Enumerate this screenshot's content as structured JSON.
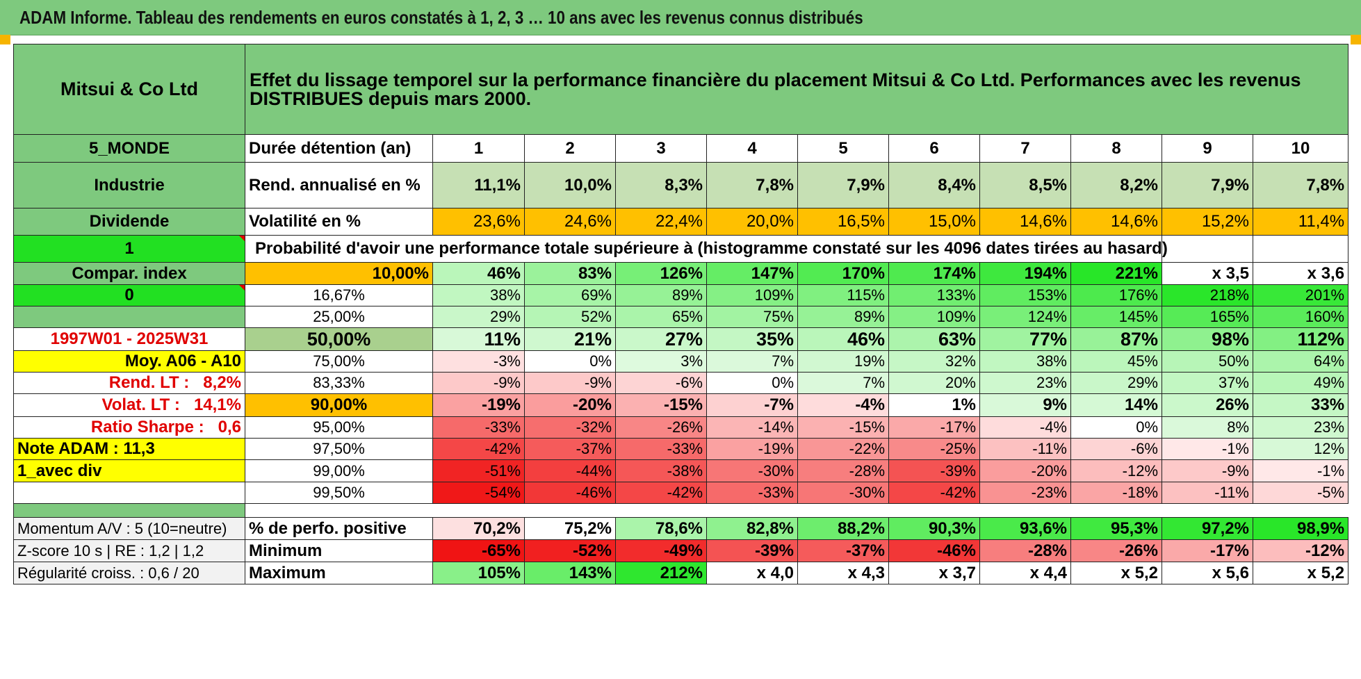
{
  "title": "ADAM Informe. Tableau des rendements en euros constatés à 1, 2, 3 … 10 ans avec les revenus connus distribués",
  "header": {
    "fund_name": "Mitsui & Co Ltd",
    "description": "Effet du lissage temporel sur la performance financière du placement Mitsui & Co Ltd. Performances avec les revenus DISTRIBUES depuis mars 2000."
  },
  "left": {
    "zone": "5_MONDE",
    "sector": "Industrie",
    "dividend": "Dividende",
    "flag1": "1",
    "compar": "Compar. index",
    "flag0": "0",
    "period": "1997W01 - 2025W31",
    "moy": "Moy. A06 - A10",
    "rend_lt_label": "Rend. LT :",
    "rend_lt_value": "8,2%",
    "volat_lt_label": "Volat. LT :",
    "volat_lt_value": "14,1%",
    "sharpe_label": "Ratio Sharpe :",
    "sharpe_value": "0,6",
    "note": "Note ADAM : 11,3",
    "div_mode": "1_avec div"
  },
  "years_label": "Durée détention (an)",
  "years": [
    "1",
    "2",
    "3",
    "4",
    "5",
    "6",
    "7",
    "8",
    "9",
    "10"
  ],
  "rend_label": "Rend. annualisé en %",
  "rend": [
    "11,1%",
    "10,0%",
    "8,3%",
    "7,8%",
    "7,9%",
    "8,4%",
    "8,5%",
    "8,2%",
    "7,9%",
    "7,8%"
  ],
  "vol_label": "Volatilité en %",
  "vol": [
    "23,6%",
    "24,6%",
    "22,4%",
    "20,0%",
    "16,5%",
    "15,0%",
    "14,6%",
    "14,6%",
    "15,2%",
    "11,4%"
  ],
  "prob_label": "Probabilité d'avoir une performance totale supérieure à (histogramme constaté sur les 4096 dates tirées au hasard)",
  "prob_rows": [
    {
      "p": "10,00%",
      "v": [
        "46%",
        "83%",
        "126%",
        "147%",
        "170%",
        "174%",
        "194%",
        "221%",
        "x 3,5",
        "x 3,6"
      ]
    },
    {
      "p": "16,67%",
      "v": [
        "38%",
        "69%",
        "89%",
        "109%",
        "115%",
        "133%",
        "153%",
        "176%",
        "218%",
        "201%"
      ]
    },
    {
      "p": "25,00%",
      "v": [
        "29%",
        "52%",
        "65%",
        "75%",
        "89%",
        "109%",
        "124%",
        "145%",
        "165%",
        "160%"
      ]
    },
    {
      "p": "50,00%",
      "v": [
        "11%",
        "21%",
        "27%",
        "35%",
        "46%",
        "63%",
        "77%",
        "87%",
        "98%",
        "112%"
      ]
    },
    {
      "p": "75,00%",
      "v": [
        "-3%",
        "0%",
        "3%",
        "7%",
        "19%",
        "32%",
        "38%",
        "45%",
        "50%",
        "64%"
      ]
    },
    {
      "p": "83,33%",
      "v": [
        "-9%",
        "-9%",
        "-6%",
        "0%",
        "7%",
        "20%",
        "23%",
        "29%",
        "37%",
        "49%"
      ]
    },
    {
      "p": "90,00%",
      "v": [
        "-19%",
        "-20%",
        "-15%",
        "-7%",
        "-4%",
        "1%",
        "9%",
        "14%",
        "26%",
        "33%"
      ]
    },
    {
      "p": "95,00%",
      "v": [
        "-33%",
        "-32%",
        "-26%",
        "-14%",
        "-15%",
        "-17%",
        "-4%",
        "0%",
        "8%",
        "23%"
      ]
    },
    {
      "p": "97,50%",
      "v": [
        "-42%",
        "-37%",
        "-33%",
        "-19%",
        "-22%",
        "-25%",
        "-11%",
        "-6%",
        "-1%",
        "12%"
      ]
    },
    {
      "p": "99,00%",
      "v": [
        "-51%",
        "-44%",
        "-38%",
        "-30%",
        "-28%",
        "-39%",
        "-20%",
        "-12%",
        "-9%",
        "-1%"
      ]
    },
    {
      "p": "99,50%",
      "v": [
        "-54%",
        "-46%",
        "-42%",
        "-33%",
        "-30%",
        "-42%",
        "-23%",
        "-18%",
        "-11%",
        "-5%"
      ]
    }
  ],
  "footer": [
    {
      "left": "Momentum A/V : 5 (10=neutre)",
      "label": "% de perfo. positive",
      "v": [
        "70,2%",
        "75,2%",
        "78,6%",
        "82,8%",
        "88,2%",
        "90,3%",
        "93,6%",
        "95,3%",
        "97,2%",
        "98,9%"
      ]
    },
    {
      "left": "Z-score 10 s | RE : 1,2 | 1,2",
      "label": "Minimum",
      "v": [
        "-65%",
        "-52%",
        "-49%",
        "-39%",
        "-37%",
        "-46%",
        "-28%",
        "-26%",
        "-17%",
        "-12%"
      ]
    },
    {
      "left": "Régularité croiss. : 0,6 / 20",
      "label": "Maximum",
      "v": [
        "105%",
        "143%",
        "212%",
        "x 4,0",
        "x 4,3",
        "x 3,7",
        "x 4,4",
        "x 5,2",
        "x 5,6",
        "x 5,2"
      ]
    }
  ],
  "colors": {
    "header_green": "#7ec97e",
    "bright_green": "#22e022",
    "yellow": "#ffff00",
    "orange": "#ffc000",
    "red_text": "#e00000"
  }
}
